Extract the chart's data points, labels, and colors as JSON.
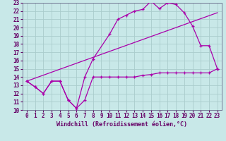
{
  "background_color": "#c8e8e8",
  "grid_color": "#aacccc",
  "line_color": "#aa00aa",
  "xlim": [
    -0.5,
    23.5
  ],
  "ylim": [
    10,
    23
  ],
  "xlabel": "Windchill (Refroidissement éolien,°C)",
  "xticks": [
    0,
    1,
    2,
    3,
    4,
    5,
    6,
    7,
    8,
    9,
    10,
    11,
    12,
    13,
    14,
    15,
    16,
    17,
    18,
    19,
    20,
    21,
    22,
    23
  ],
  "yticks": [
    10,
    11,
    12,
    13,
    14,
    15,
    16,
    17,
    18,
    19,
    20,
    21,
    22,
    23
  ],
  "line1_x": [
    0,
    1,
    2,
    3,
    4,
    5,
    6,
    7,
    8,
    9,
    10,
    11,
    12,
    13,
    14,
    15,
    16,
    17,
    18,
    19,
    20,
    21,
    22,
    23
  ],
  "line1_y": [
    13.5,
    12.8,
    12.0,
    13.5,
    13.5,
    11.2,
    10.2,
    11.2,
    14.0,
    14.0,
    14.0,
    14.0,
    14.0,
    14.0,
    14.2,
    14.3,
    14.5,
    14.5,
    14.5,
    14.5,
    14.5,
    14.5,
    14.5,
    15.0
  ],
  "line2_x": [
    0,
    1,
    2,
    3,
    4,
    5,
    6,
    7,
    8,
    10,
    11,
    12,
    13,
    14,
    15,
    16,
    17,
    18,
    19,
    20,
    21,
    22,
    23
  ],
  "line2_y": [
    13.5,
    12.8,
    12.0,
    13.5,
    13.5,
    11.2,
    10.2,
    14.0,
    16.2,
    19.2,
    21.0,
    21.5,
    22.0,
    22.2,
    23.2,
    22.3,
    23.0,
    22.8,
    21.8,
    20.2,
    17.8,
    17.8,
    15.0
  ],
  "line3_x": [
    0,
    23
  ],
  "line3_y": [
    13.5,
    21.8
  ],
  "xlabel_fontsize": 6,
  "tick_fontsize": 5.5
}
